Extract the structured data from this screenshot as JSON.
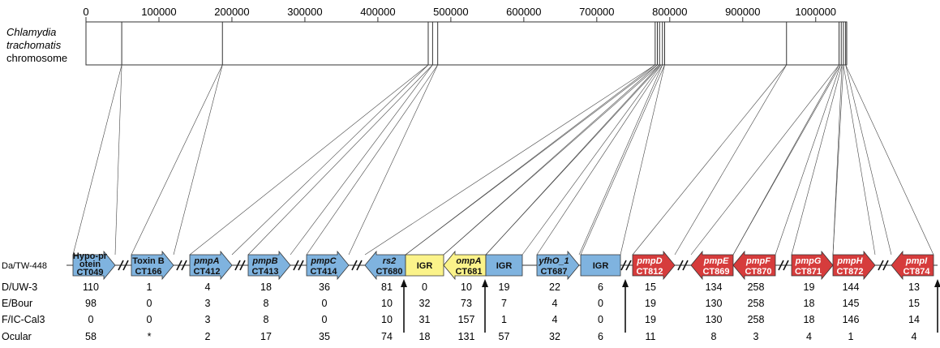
{
  "title_lines": [
    "Chlamydia",
    "trachomatis",
    "chromosome"
  ],
  "axis": {
    "ticks": [
      {
        "label": "0",
        "value": 0
      },
      {
        "label": "100000",
        "value": 100000
      },
      {
        "label": "200000",
        "value": 200000
      },
      {
        "label": "300000",
        "value": 300000
      },
      {
        "label": "400000",
        "value": 400000
      },
      {
        "label": "500000",
        "value": 500000
      },
      {
        "label": "600000",
        "value": 600000
      },
      {
        "label": "700000",
        "value": 700000
      },
      {
        "label": "800000",
        "value": 800000
      },
      {
        "label": "900000",
        "value": 900000
      },
      {
        "label": "1000000",
        "value": 1000000
      }
    ],
    "max": 1042519
  },
  "chromosome_marks": [
    49000,
    187000,
    469000,
    475000,
    482000,
    780000,
    783000,
    786000,
    790000,
    793000,
    960000,
    1032000,
    1035000,
    1038000,
    1041000
  ],
  "reference_strain": "Da/TW-448",
  "colors": {
    "blue": "#7fb3df",
    "red": "#d63c3c",
    "yellow": "#fbf38a",
    "stroke": "#333333"
  },
  "genes": [
    {
      "name": "Hypo-pr",
      "name2": "otein",
      "id": "CT049",
      "dir": "right",
      "color": "blue",
      "italic": false,
      "pos": 49000,
      "counts": [
        "110",
        "98",
        "0",
        "58"
      ]
    },
    {
      "name": "Toxin B",
      "name2": "",
      "id": "CT166",
      "dir": "right",
      "color": "blue",
      "italic": false,
      "pos": 187000,
      "counts": [
        "1",
        "0",
        "0",
        "*"
      ]
    },
    {
      "name": "pmpA",
      "name2": "",
      "id": "CT412",
      "dir": "right",
      "color": "blue",
      "italic": true,
      "pos": 469000,
      "counts": [
        "4",
        "3",
        "3",
        "2"
      ]
    },
    {
      "name": "pmpB",
      "name2": "",
      "id": "CT413",
      "dir": "right",
      "color": "blue",
      "italic": true,
      "pos": 475000,
      "counts": [
        "18",
        "8",
        "8",
        "17"
      ]
    },
    {
      "name": "pmpC",
      "name2": "",
      "id": "CT414",
      "dir": "right",
      "color": "blue",
      "italic": true,
      "pos": 482000,
      "counts": [
        "36",
        "0",
        "0",
        "35"
      ]
    },
    {
      "name": "rs2",
      "name2": "",
      "id": "CT680",
      "dir": "left",
      "color": "blue",
      "italic": true,
      "pos": 780000,
      "counts": [
        "81",
        "10",
        "10",
        "74"
      ]
    },
    {
      "name": "IGR",
      "name2": "",
      "id": "",
      "dir": "none",
      "color": "yellow",
      "italic": false,
      "pos": 783000,
      "counts": [
        "0",
        "32",
        "31",
        "18"
      ]
    },
    {
      "name": "ompA",
      "name2": "",
      "id": "CT681",
      "dir": "left",
      "color": "yellow",
      "italic": true,
      "pos": 786000,
      "counts": [
        "10",
        "73",
        "157",
        "131"
      ]
    },
    {
      "name": "IGR",
      "name2": "",
      "id": "",
      "dir": "none",
      "color": "blue",
      "italic": false,
      "pos": 788000,
      "counts": [
        "19",
        "7",
        "1",
        "57"
      ]
    },
    {
      "name": "yfhO_1",
      "name2": "",
      "id": "CT687",
      "dir": "right",
      "color": "blue",
      "italic": true,
      "pos": 790000,
      "counts": [
        "22",
        "4",
        "4",
        "32"
      ]
    },
    {
      "name": "IGR",
      "name2": "",
      "id": "",
      "dir": "none",
      "color": "blue",
      "italic": false,
      "pos": 793000,
      "counts": [
        "6",
        "0",
        "0",
        "6"
      ]
    },
    {
      "name": "pmpD",
      "name2": "",
      "id": "CT812",
      "dir": "right",
      "color": "red",
      "italic": true,
      "pos": 960000,
      "counts": [
        "15",
        "19",
        "19",
        "11"
      ]
    },
    {
      "name": "pmpE",
      "name2": "",
      "id": "CT869",
      "dir": "left",
      "color": "red",
      "italic": true,
      "pos": 1032000,
      "counts": [
        "134",
        "130",
        "130",
        "8"
      ]
    },
    {
      "name": "pmpF",
      "name2": "",
      "id": "CT870",
      "dir": "left",
      "color": "red",
      "italic": true,
      "pos": 1034000,
      "counts": [
        "258",
        "258",
        "258",
        "3"
      ]
    },
    {
      "name": "pmpG",
      "name2": "",
      "id": "CT871",
      "dir": "right",
      "color": "red",
      "italic": true,
      "pos": 1036000,
      "counts": [
        "19",
        "18",
        "18",
        "4"
      ]
    },
    {
      "name": "pmpH",
      "name2": "",
      "id": "CT872",
      "dir": "right",
      "color": "red",
      "italic": true,
      "pos": 1038000,
      "counts": [
        "144",
        "145",
        "146",
        "1"
      ]
    },
    {
      "name": "pmpI",
      "name2": "",
      "id": "CT874",
      "dir": "left",
      "color": "red",
      "italic": true,
      "pos": 1041000,
      "counts": [
        "13",
        "15",
        "14",
        "4"
      ]
    }
  ],
  "strains": [
    "D/UW-3",
    "E/Bour",
    "F/IC-Cal3",
    "Ocular"
  ]
}
